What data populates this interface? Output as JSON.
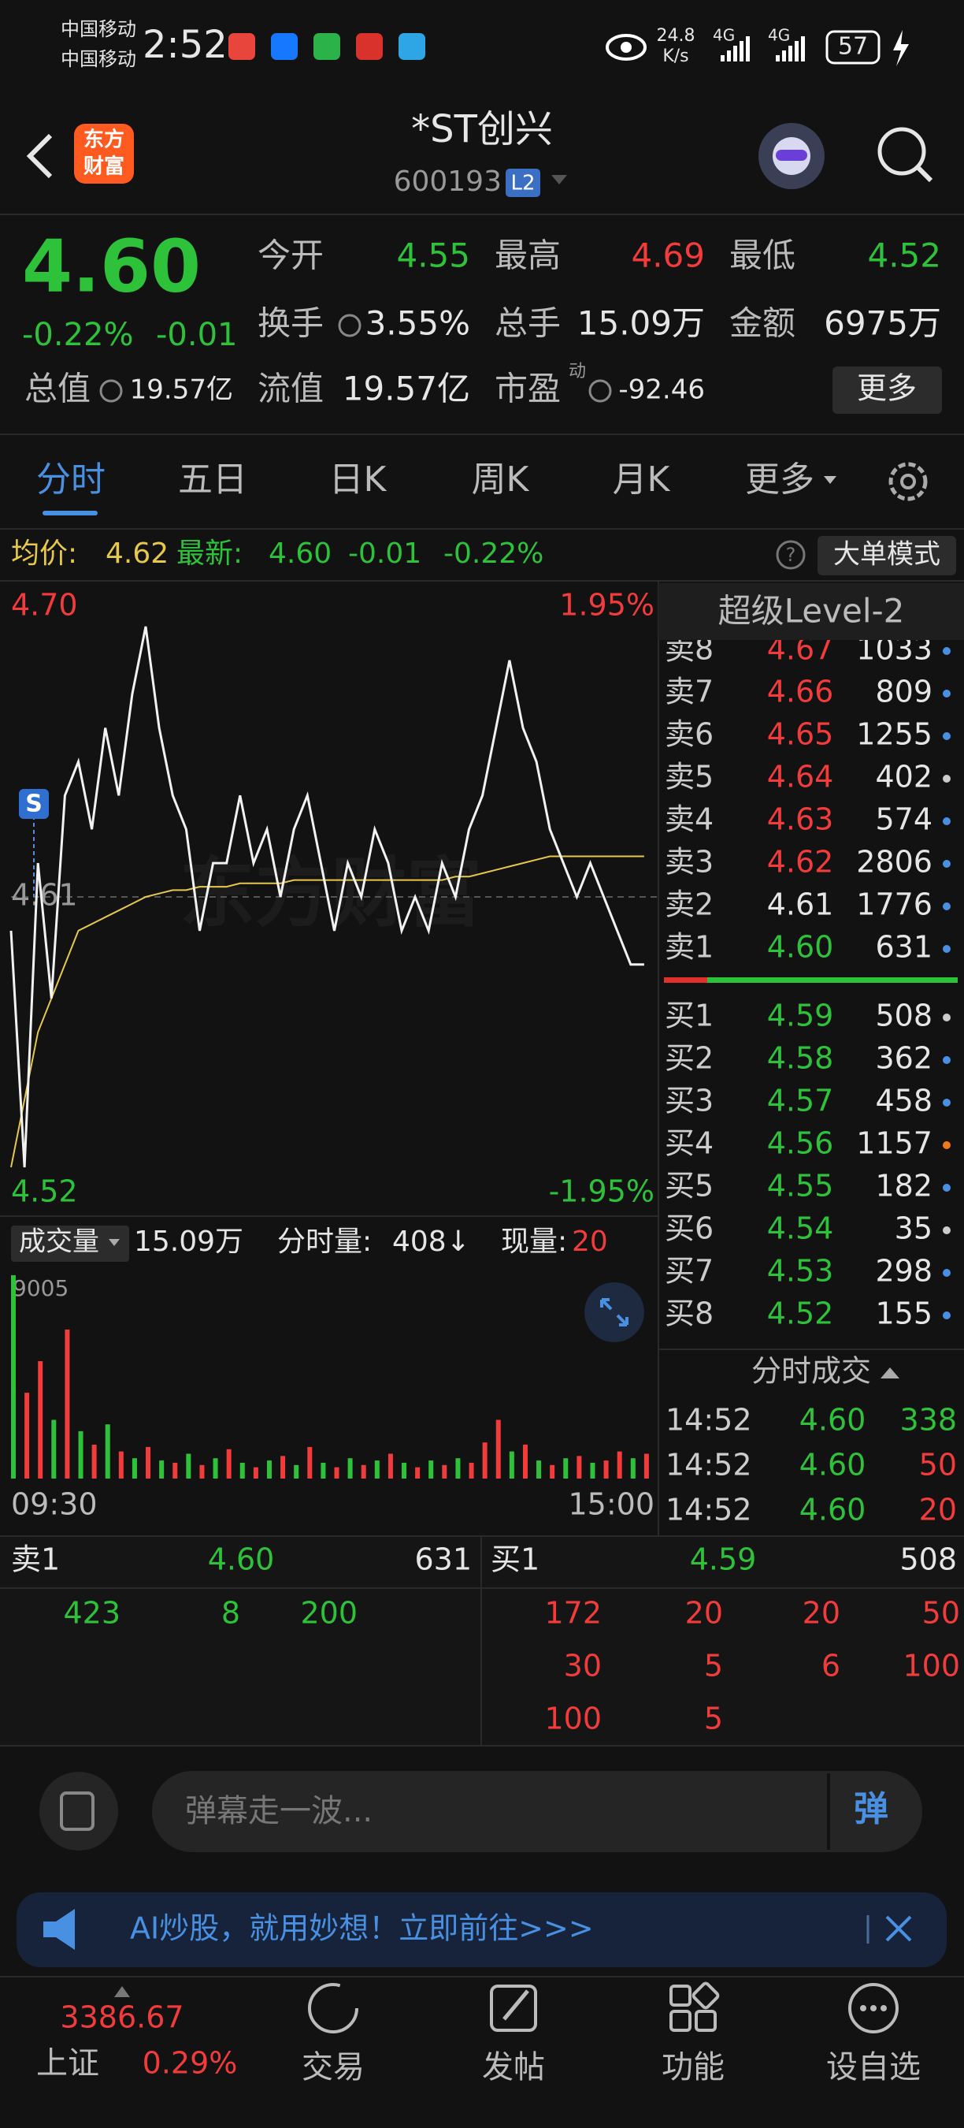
{
  "status_bar": {
    "carrier_1": "中国移动",
    "carrier_2": "中国移动",
    "time": "2:52",
    "speed_value": "24.8",
    "speed_unit": "K/s",
    "network_1": "4G",
    "network_2": "4G",
    "battery": "57"
  },
  "header": {
    "logo_line_1": "东方",
    "logo_line_2": "财富",
    "title": "*ST创兴",
    "code": "600193",
    "level": "L2"
  },
  "quote": {
    "price": "4.60",
    "change_pct": "-0.22%",
    "change": "-0.01",
    "pe_superscript": "动",
    "more_button": "更多",
    "fields": [
      {
        "label": "今开",
        "value": "4.55",
        "color": "#2ec23a"
      },
      {
        "label": "最高",
        "value": "4.69",
        "color": "#f23b3b"
      },
      {
        "label": "最低",
        "value": "4.52",
        "color": "#2ec23a"
      },
      {
        "label": "换手",
        "value": "3.55%",
        "color": "#e6e6e6"
      },
      {
        "label": "总手",
        "value": "15.09万",
        "color": "#e6e6e6"
      },
      {
        "label": "金额",
        "value": "6975万",
        "color": "#e6e6e6"
      },
      {
        "label": "总值",
        "value": "19.57亿",
        "color": "#e6e6e6"
      },
      {
        "label": "流值",
        "value": "19.57亿",
        "color": "#e6e6e6"
      },
      {
        "label": "市盈",
        "value": "-92.46",
        "color": "#e6e6e6"
      }
    ]
  },
  "tabs": [
    "分时",
    "五日",
    "日K",
    "周K",
    "月K",
    "更多"
  ],
  "avg_bar": {
    "avg_label": "均价:",
    "avg": "4.62",
    "latest_label": "最新:",
    "latest": "4.60",
    "change": "-0.01",
    "change_pct": "-0.22%",
    "big_order_button": "大单模式"
  },
  "watermark": "东方财富",
  "signal_marker": "S",
  "chart_data": [
    {
      "type": "line",
      "ylim": [
        4.52,
        4.7
      ],
      "yticks": [
        {
          "value": 4.7,
          "label": "4.70"
        },
        4.61,
        4.52
      ],
      "y2lim": [
        -1.95,
        1.95
      ],
      "y2ticks": [
        {
          "value": 1.95,
          "label": "1.95%"
        },
        {
          "value": -1.95,
          "label": "-1.95%"
        }
      ],
      "series": [
        {
          "color": "#f2f2f2",
          "values": [
            4.6,
            4.53,
            4.62,
            4.58,
            4.64,
            4.65,
            4.63,
            4.66,
            4.64,
            4.67,
            4.69,
            4.66,
            4.64,
            4.63,
            4.6,
            4.62,
            4.62,
            4.64,
            4.62,
            4.63,
            4.61,
            4.63,
            4.64,
            4.62,
            4.6,
            4.62,
            4.61,
            4.63,
            4.62,
            4.6,
            4.61,
            4.6,
            4.62,
            4.61,
            4.63,
            4.64,
            4.66,
            4.68,
            4.66,
            4.65,
            4.63,
            4.62,
            4.61,
            4.62,
            4.61,
            4.6,
            4.59,
            4.59
          ]
        },
        {
          "color": "#e6c84a",
          "values": [
            4.53,
            4.55,
            4.57,
            4.58,
            4.59,
            4.6,
            4.602,
            4.604,
            4.606,
            4.608,
            4.61,
            4.611,
            4.612,
            4.612,
            4.613,
            4.613,
            4.613,
            4.614,
            4.614,
            4.614,
            4.614,
            4.615,
            4.615,
            4.615,
            4.615,
            4.615,
            4.615,
            4.615,
            4.615,
            4.615,
            4.615,
            4.615,
            4.615,
            4.616,
            4.616,
            4.617,
            4.618,
            4.619,
            4.62,
            4.621,
            4.622,
            4.622,
            4.622,
            4.622,
            4.622,
            4.622,
            4.622,
            4.622
          ]
        }
      ]
    },
    {
      "type": "bar",
      "ylim": [
        0,
        9005
      ],
      "yticks": [
        9005
      ],
      "x_labels": [
        "09:30",
        "15:00"
      ],
      "values": [
        9005,
        3800,
        5200,
        2600,
        6600,
        2100,
        1500,
        2400,
        1200,
        900,
        1400,
        800,
        700,
        1100,
        600,
        900,
        1300,
        700,
        500,
        800,
        1000,
        600,
        1400,
        700,
        500,
        900,
        600,
        800,
        1100,
        700,
        500,
        800,
        600,
        900,
        700,
        1600,
        2600,
        1200,
        1500,
        800,
        600,
        900,
        1000,
        700,
        800,
        1200,
        900,
        1100
      ],
      "colors": [
        "#2ec23a",
        "#f23b3b",
        "#f23b3b",
        "#2ec23a",
        "#f23b3b",
        "#2ec23a",
        "#f23b3b",
        "#2ec23a",
        "#f23b3b",
        "#2ec23a",
        "#f23b3b",
        "#2ec23a",
        "#f23b3b",
        "#2ec23a",
        "#f23b3b",
        "#2ec23a",
        "#f23b3b",
        "#2ec23a",
        "#f23b3b",
        "#2ec23a",
        "#f23b3b",
        "#2ec23a",
        "#f23b3b",
        "#2ec23a",
        "#f23b3b",
        "#2ec23a",
        "#f23b3b",
        "#2ec23a",
        "#f23b3b",
        "#2ec23a",
        "#f23b3b",
        "#2ec23a",
        "#f23b3b",
        "#2ec23a",
        "#f23b3b",
        "#f23b3b",
        "#f23b3b",
        "#2ec23a",
        "#f23b3b",
        "#2ec23a",
        "#f23b3b",
        "#2ec23a",
        "#f23b3b",
        "#2ec23a",
        "#f23b3b",
        "#f23b3b",
        "#2ec23a",
        "#f23b3b"
      ]
    }
  ],
  "volume_header": {
    "label": "成交量",
    "total": "15.09万",
    "period_label": "分时量:",
    "period": "408↓",
    "current_label": "现量:",
    "current": "20"
  },
  "order_book": {
    "title": "超级Level-2",
    "asks": [
      {
        "label": "卖8",
        "price": "4.67",
        "volume": "1033",
        "dot": "#4a90e2"
      },
      {
        "label": "卖7",
        "price": "4.66",
        "volume": "809",
        "dot": "#4a90e2"
      },
      {
        "label": "卖6",
        "price": "4.65",
        "volume": "1255",
        "dot": "#4a90e2"
      },
      {
        "label": "卖5",
        "price": "4.64",
        "volume": "402",
        "dot": "#cccccc"
      },
      {
        "label": "卖4",
        "price": "4.63",
        "volume": "574",
        "dot": "#4a90e2"
      },
      {
        "label": "卖3",
        "price": "4.62",
        "volume": "2806",
        "dot": "#4a90e2"
      },
      {
        "label": "卖2",
        "price": "4.61",
        "volume": "1776",
        "dot": "#4a90e2"
      },
      {
        "label": "卖1",
        "price": "4.60",
        "volume": "631",
        "dot": "#4a90e2"
      }
    ],
    "bids": [
      {
        "label": "买1",
        "price": "4.59",
        "volume": "508",
        "dot": "#cccccc"
      },
      {
        "label": "买2",
        "price": "4.58",
        "volume": "362",
        "dot": "#4a90e2"
      },
      {
        "label": "买3",
        "price": "4.57",
        "volume": "458",
        "dot": "#4a90e2"
      },
      {
        "label": "买4",
        "price": "4.56",
        "volume": "1157",
        "dot": "#f07a1a"
      },
      {
        "label": "买5",
        "price": "4.55",
        "volume": "182",
        "dot": "#4a90e2"
      },
      {
        "label": "买6",
        "price": "4.54",
        "volume": "35",
        "dot": "#cccccc"
      },
      {
        "label": "买7",
        "price": "4.53",
        "volume": "298",
        "dot": "#4a90e2"
      },
      {
        "label": "买8",
        "price": "4.52",
        "volume": "155",
        "dot": "#4a90e2"
      }
    ]
  },
  "trades": {
    "title": "分时成交",
    "rows": [
      {
        "time": "14:52",
        "price": "4.60",
        "volume": "338"
      },
      {
        "time": "14:52",
        "price": "4.60",
        "volume": "50"
      },
      {
        "time": "14:52",
        "price": "4.60",
        "volume": "20"
      }
    ]
  },
  "depth": {
    "ask_label": "卖1",
    "ask_price": "4.60",
    "ask_volume": "631",
    "bid_label": "买1",
    "bid_price": "4.59",
    "bid_volume": "508",
    "ask_rows": [
      [
        "423",
        "8",
        "200"
      ]
    ],
    "bid_rows": [
      [
        "172",
        "20",
        "20",
        "50"
      ],
      [
        "30",
        "5",
        "6",
        "100"
      ],
      [
        "100",
        "5"
      ]
    ]
  },
  "danmaku": {
    "placeholder": "弹幕走一波...",
    "button": "弹"
  },
  "banner": {
    "text": "AI炒股，就用妙想！立即前往>>>"
  },
  "index": {
    "value": "3386.67",
    "name": "上证",
    "change": "0.29%"
  },
  "nav": [
    "交易",
    "发帖",
    "功能",
    "设自选"
  ]
}
